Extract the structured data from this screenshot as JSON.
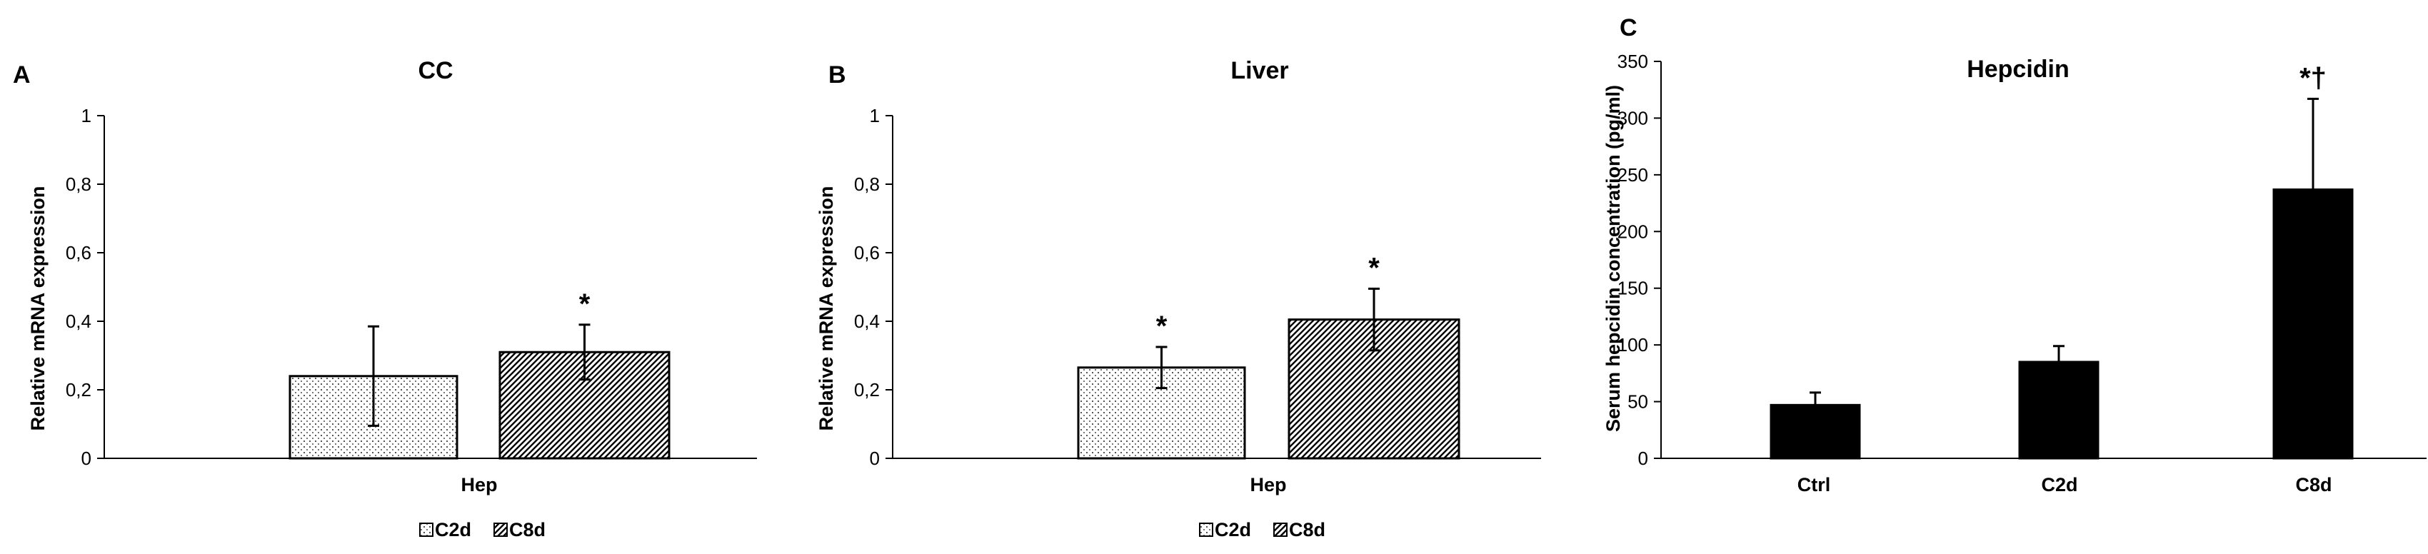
{
  "chart_data": [
    {
      "panel": "A",
      "type": "bar",
      "title": "CC",
      "xlabel": "",
      "ylabel": "Relative mRNA expression",
      "ylim": [
        0,
        1
      ],
      "yticks": [
        "0",
        "0,2",
        "0,4",
        "0,6",
        "0,8",
        "1"
      ],
      "categories": [
        "Hep"
      ],
      "series": [
        {
          "name": "C2d",
          "pattern": "dots",
          "values": [
            0.24
          ],
          "errors": [
            0.145
          ],
          "significance": [
            ""
          ]
        },
        {
          "name": "C8d",
          "pattern": "hatch",
          "values": [
            0.31
          ],
          "errors": [
            0.08
          ],
          "significance": [
            "*"
          ]
        }
      ],
      "legend": "bottom",
      "grid": false
    },
    {
      "panel": "B",
      "type": "bar",
      "title": "Liver",
      "xlabel": "",
      "ylabel": "Relative mRNA expression",
      "ylim": [
        0,
        1
      ],
      "yticks": [
        "0",
        "0,2",
        "0,4",
        "0,6",
        "0,8",
        "1"
      ],
      "categories": [
        "Hep"
      ],
      "series": [
        {
          "name": "C2d",
          "pattern": "dots",
          "values": [
            0.265
          ],
          "errors": [
            0.06
          ],
          "significance": [
            "*"
          ]
        },
        {
          "name": "C8d",
          "pattern": "hatch",
          "values": [
            0.405
          ],
          "errors": [
            0.09
          ],
          "significance": [
            "*"
          ]
        }
      ],
      "legend": "bottom",
      "grid": false
    },
    {
      "panel": "C",
      "type": "bar",
      "title": "Hepcidin",
      "xlabel": "",
      "ylabel": "Serum hepcidin concentration (pg/ml)",
      "ylim": [
        0,
        350
      ],
      "yticks": [
        "0",
        "50",
        "100",
        "150",
        "200",
        "250",
        "300",
        "350"
      ],
      "categories": [
        "Ctrl",
        "C2d",
        "C8d"
      ],
      "series": [
        {
          "name": "",
          "pattern": "solid",
          "color": "#000000",
          "values": [
            47,
            85,
            237
          ],
          "errors": [
            11,
            14,
            80
          ],
          "significance": [
            "",
            "",
            "*†"
          ]
        }
      ],
      "legend": "none",
      "grid": false
    }
  ]
}
